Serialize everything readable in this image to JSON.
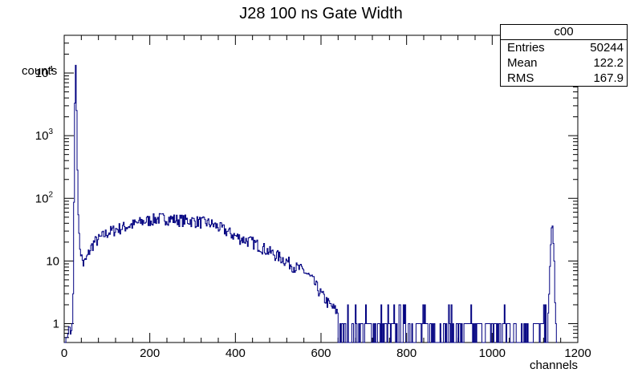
{
  "chart_data": {
    "type": "histogram",
    "title": "J28 100 ns Gate Width",
    "xlabel": "channels",
    "ylabel": "counts",
    "xlim": [
      0,
      1200
    ],
    "ylim": [
      0.5,
      40000
    ],
    "yscale": "log",
    "x_ticks": [
      "0",
      "200",
      "400",
      "600",
      "800",
      "1000",
      "1200"
    ],
    "line_color": "#000080",
    "series": [
      {
        "bin_width": 2,
        "points": [
          [
            0,
            0
          ],
          [
            8,
            0.6
          ],
          [
            12,
            1
          ],
          [
            16,
            0.6
          ],
          [
            18,
            1
          ],
          [
            20,
            1
          ],
          [
            22,
            15
          ],
          [
            24,
            500
          ],
          [
            26,
            22000
          ],
          [
            28,
            8000
          ],
          [
            30,
            800
          ],
          [
            32,
            100
          ],
          [
            34,
            30
          ],
          [
            36,
            18
          ],
          [
            38,
            16
          ],
          [
            40,
            12
          ],
          [
            45,
            9
          ],
          [
            50,
            10
          ],
          [
            55,
            12
          ],
          [
            60,
            15
          ],
          [
            70,
            20
          ],
          [
            80,
            22
          ],
          [
            90,
            25
          ],
          [
            100,
            28
          ],
          [
            120,
            32
          ],
          [
            140,
            35
          ],
          [
            160,
            38
          ],
          [
            180,
            42
          ],
          [
            200,
            45
          ],
          [
            220,
            48
          ],
          [
            240,
            48
          ],
          [
            260,
            46
          ],
          [
            280,
            45
          ],
          [
            300,
            44
          ],
          [
            320,
            42
          ],
          [
            340,
            40
          ],
          [
            360,
            35
          ],
          [
            380,
            30
          ],
          [
            400,
            25
          ],
          [
            420,
            22
          ],
          [
            440,
            20
          ],
          [
            460,
            17
          ],
          [
            480,
            14
          ],
          [
            500,
            12
          ],
          [
            520,
            10
          ],
          [
            540,
            8
          ],
          [
            560,
            7
          ],
          [
            580,
            5
          ],
          [
            600,
            3
          ],
          [
            620,
            2
          ],
          [
            640,
            1.5
          ],
          [
            660,
            1
          ],
          [
            700,
            1
          ],
          [
            750,
            1
          ],
          [
            800,
            1
          ],
          [
            850,
            1
          ],
          [
            900,
            1
          ],
          [
            950,
            1
          ],
          [
            1000,
            1
          ],
          [
            1050,
            1
          ],
          [
            1100,
            1
          ],
          [
            1130,
            1
          ],
          [
            1140,
            50
          ],
          [
            1145,
            10
          ],
          [
            1148,
            1
          ],
          [
            1152,
            0
          ]
        ]
      }
    ]
  },
  "stats_box": {
    "title": "c00",
    "rows": [
      {
        "label": "Entries",
        "value": "50244"
      },
      {
        "label": "Mean",
        "value": "122.2"
      },
      {
        "label": "RMS",
        "value": "167.9"
      }
    ]
  }
}
